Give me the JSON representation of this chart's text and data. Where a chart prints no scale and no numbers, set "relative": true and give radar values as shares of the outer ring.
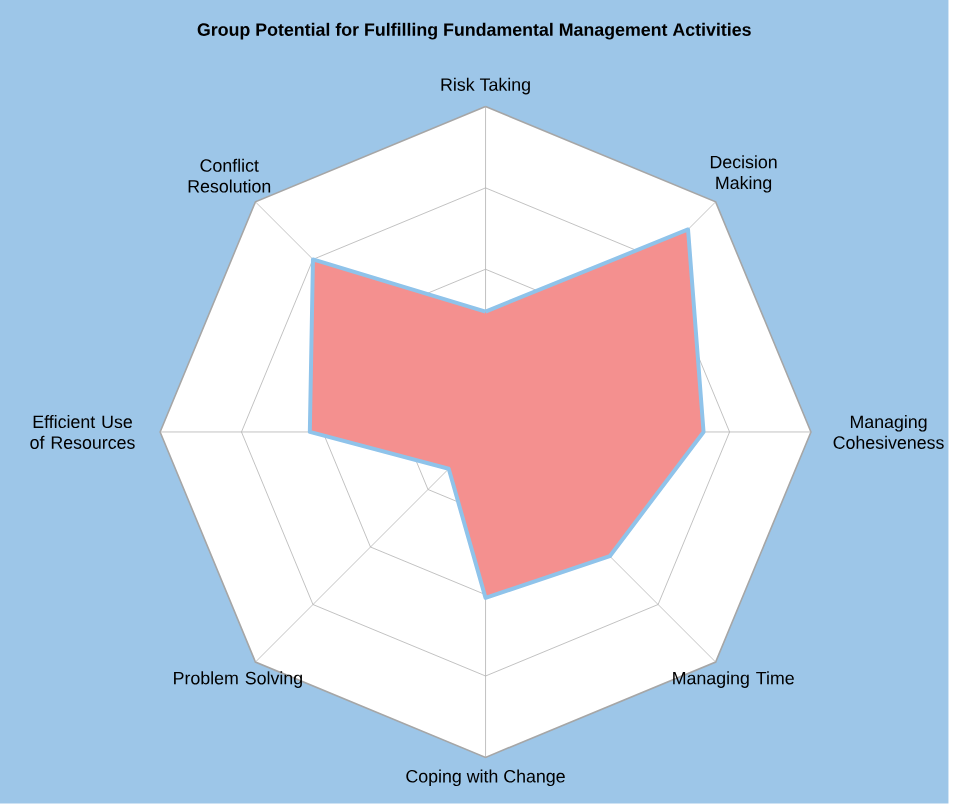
{
  "chart_data": {
    "type": "radar",
    "title": "Group Potential for Fulfilling Fundamental Management Activities",
    "relative": true,
    "categories": [
      "Risk Taking",
      "Decision Making",
      "Managing Cohesiveness",
      "Managing Time",
      "Coping with Change",
      "Problem Solving",
      "Efficient Use of Resources",
      "Conflict Resolution"
    ],
    "series": [
      {
        "color": "#f4908f",
        "values": [
          0.37,
          0.88,
          0.67,
          0.54,
          0.51,
          0.16,
          0.54,
          0.75
        ]
      }
    ]
  }
}
